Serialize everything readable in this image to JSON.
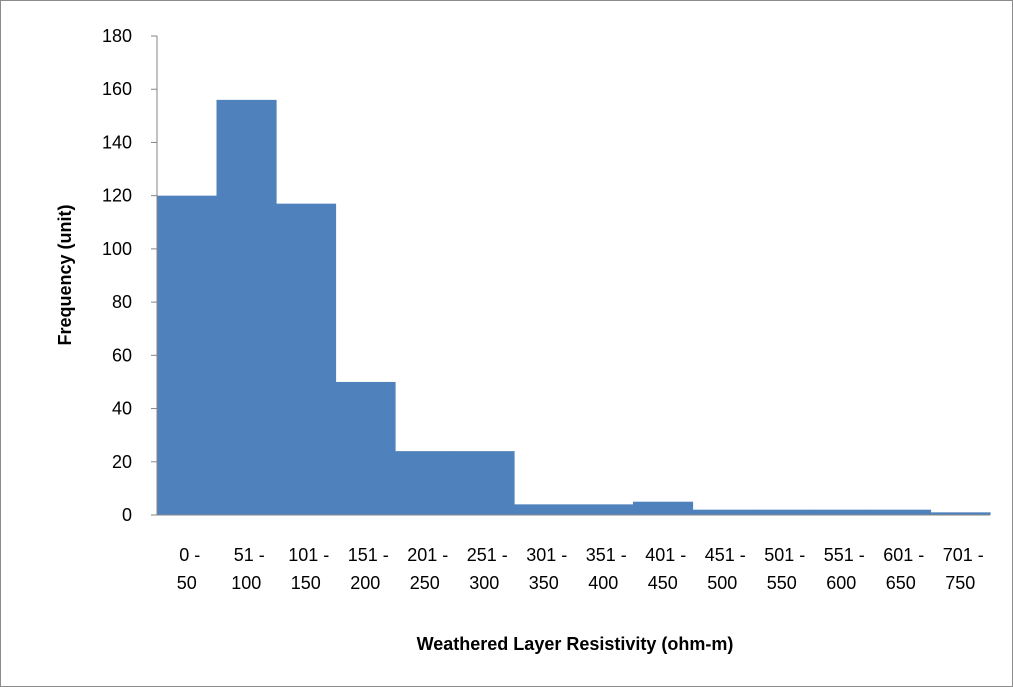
{
  "chart_data": {
    "type": "bar",
    "title": "",
    "xlabel": "Weathered Layer Resistivity (ohm-m)",
    "ylabel": "Frequency (unit)",
    "ylim": [
      0,
      180
    ],
    "yticks": [
      0,
      20,
      40,
      60,
      80,
      100,
      120,
      140,
      160,
      180
    ],
    "categories": [
      [
        "0 -",
        "50"
      ],
      [
        "51 -",
        "100"
      ],
      [
        "101 -",
        "150"
      ],
      [
        "151 -",
        "200"
      ],
      [
        "201 -",
        "250"
      ],
      [
        "251 -",
        "300"
      ],
      [
        "301 -",
        "350"
      ],
      [
        "351 -",
        "400"
      ],
      [
        "401 -",
        "450"
      ],
      [
        "451 -",
        "500"
      ],
      [
        "501 -",
        "550"
      ],
      [
        "551 -",
        "600"
      ],
      [
        "601 -",
        "650"
      ],
      [
        "701 -",
        "750"
      ]
    ],
    "values": [
      120,
      156,
      117,
      50,
      24,
      24,
      4,
      4,
      5,
      2,
      2,
      2,
      2,
      1
    ],
    "bar_color": "#4f81bd",
    "grid": false,
    "legend": "none"
  }
}
